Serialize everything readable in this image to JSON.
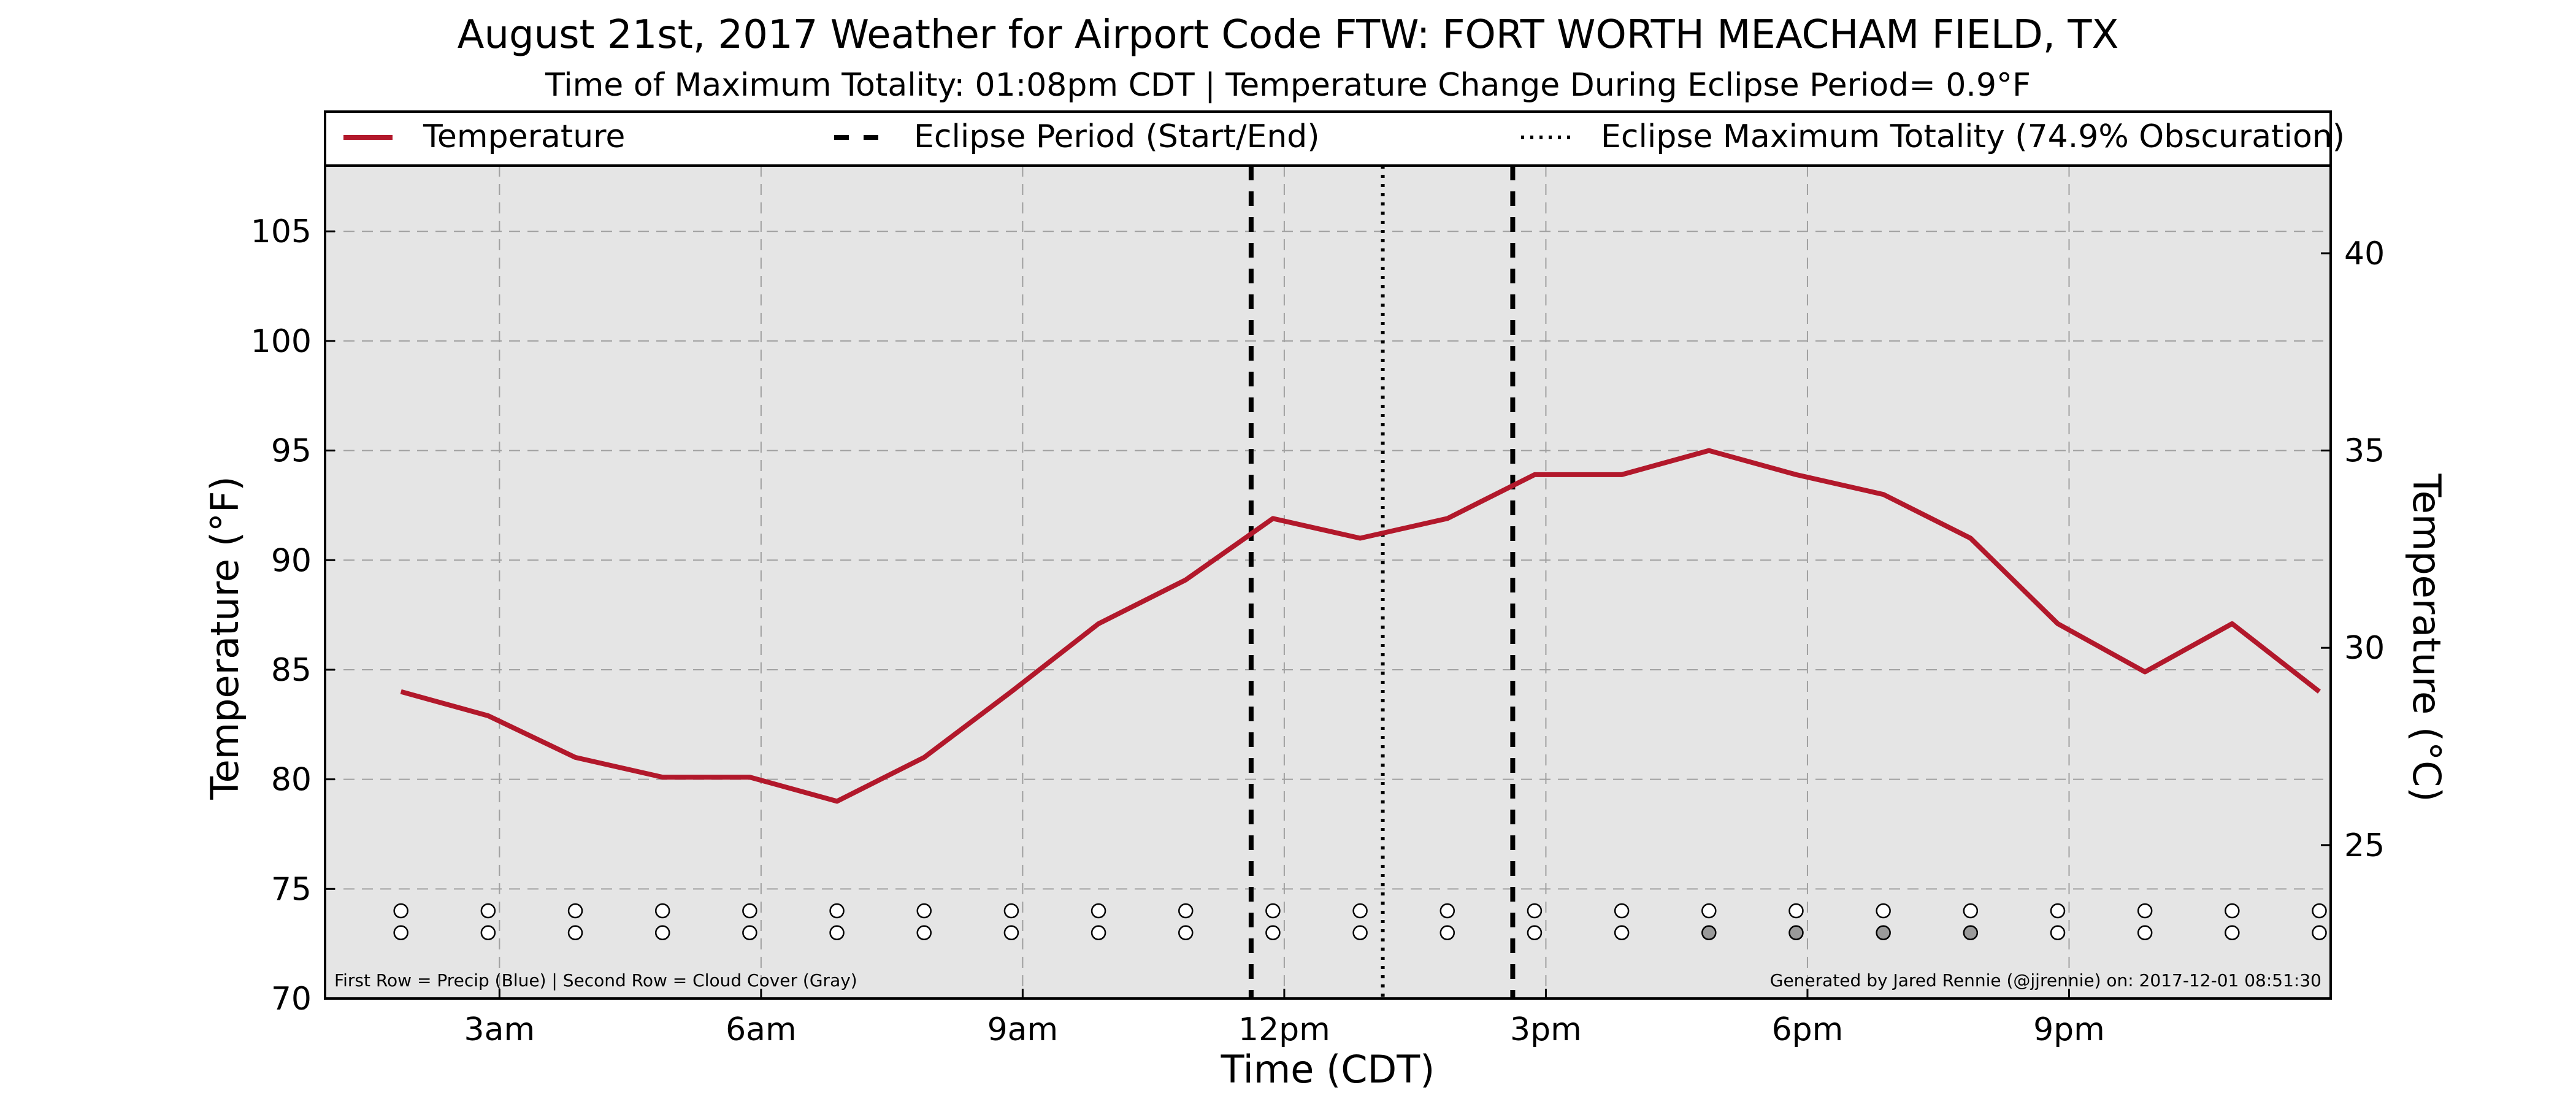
{
  "chart_data": {
    "type": "line",
    "title": "August 21st, 2017 Weather for Airport Code FTW: FORT WORTH MEACHAM FIELD, TX",
    "subtitle": "Time of Maximum Totality: 01:08pm CDT | Temperature Change During Eclipse Period= 0.9$^\\circ$F",
    "subtitle_display": "Time of Maximum Totality: 01:08pm CDT | Temperature Change During Eclipse Period= 0.9°F",
    "xlabel": "Time (CDT)",
    "ylabel": "Temperature ($^\\circ$F)",
    "ylabel_display": "Temperature (°F)",
    "ylabel_right": "Temperature ($^\\circ$C)",
    "ylabel_right_display": "Temperature (°C)",
    "xlim": [
      1.0,
      24.0
    ],
    "ylim": [
      70,
      108
    ],
    "ylim_right_note": "Celsius axis aligned to Fahrenheit axis",
    "x_ticks": [
      {
        "x": 3,
        "label": "3am"
      },
      {
        "x": 6,
        "label": "6am"
      },
      {
        "x": 9,
        "label": "9am"
      },
      {
        "x": 12,
        "label": "12pm"
      },
      {
        "x": 15,
        "label": "3pm"
      },
      {
        "x": 18,
        "label": "6pm"
      },
      {
        "x": 21,
        "label": "9pm"
      }
    ],
    "y_ticks": [
      70,
      75,
      80,
      85,
      90,
      95,
      100,
      105
    ],
    "y_ticks_right": [
      25,
      30,
      35,
      40
    ],
    "grid": true,
    "legend": {
      "placement": "top (above plot)",
      "entries": [
        {
          "label": "Temperature",
          "style": "solid",
          "color": "#b2182b"
        },
        {
          "label": "Eclipse Period (Start/End)",
          "style": "dashed",
          "color": "#000000"
        },
        {
          "label": "Eclipse Maximum Totality (74.9% Obscuration)",
          "style": "dotted",
          "color": "#000000"
        }
      ]
    },
    "series": [
      {
        "name": "Temperature",
        "color": "#b2182b",
        "x": [
          1.87,
          2.87,
          3.87,
          4.87,
          5.87,
          6.87,
          7.87,
          8.87,
          9.87,
          10.87,
          11.87,
          12.87,
          13.87,
          14.87,
          15.87,
          16.87,
          17.87,
          18.87,
          19.87,
          20.87,
          21.87,
          22.87,
          23.87
        ],
        "values": [
          84.0,
          82.9,
          81.0,
          80.1,
          80.1,
          79.0,
          81.0,
          84.0,
          87.1,
          89.1,
          91.9,
          91.0,
          91.9,
          93.9,
          93.9,
          95.0,
          93.9,
          93.0,
          91.0,
          87.1,
          84.9,
          87.1,
          84.0
        ]
      }
    ],
    "eclipse": {
      "start": 11.62,
      "end": 14.62,
      "max_totality": 13.13
    },
    "markers": {
      "x": [
        1.87,
        2.87,
        3.87,
        4.87,
        5.87,
        6.87,
        7.87,
        8.87,
        9.87,
        10.87,
        11.87,
        12.87,
        13.87,
        14.87,
        15.87,
        16.87,
        17.87,
        18.87,
        19.87,
        20.87,
        21.87,
        22.87,
        23.87
      ],
      "precip_row_y": 74.0,
      "cloud_row_y": 73.0,
      "precip_fill": [
        "#ffffff",
        "#ffffff",
        "#ffffff",
        "#ffffff",
        "#ffffff",
        "#ffffff",
        "#ffffff",
        "#ffffff",
        "#ffffff",
        "#ffffff",
        "#ffffff",
        "#ffffff",
        "#ffffff",
        "#ffffff",
        "#ffffff",
        "#ffffff",
        "#ffffff",
        "#ffffff",
        "#ffffff",
        "#ffffff",
        "#ffffff",
        "#ffffff",
        "#ffffff"
      ],
      "cloud_fill": [
        "#ffffff",
        "#ffffff",
        "#ffffff",
        "#ffffff",
        "#ffffff",
        "#ffffff",
        "#ffffff",
        "#ffffff",
        "#ffffff",
        "#ffffff",
        "#ffffff",
        "#ffffff",
        "#ffffff",
        "#ffffff",
        "#ffffff",
        "#9a9a9a",
        "#9a9a9a",
        "#9a9a9a",
        "#9a9a9a",
        "#ffffff",
        "#ffffff",
        "#ffffff",
        "#ffffff"
      ]
    },
    "footnote_left": "First Row = Precip (Blue) | Second Row = Cloud Cover (Gray)",
    "footnote_right": "Generated by Jared Rennie (@jjrennie) on: 2017-12-01 08:51:30"
  }
}
